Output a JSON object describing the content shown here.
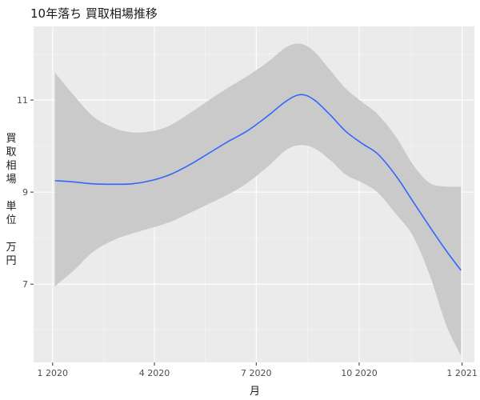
{
  "chart_data": {
    "type": "line",
    "title": "10年落ち 買取相場推移",
    "xlabel": "月",
    "ylabel": "買取相場　単位　万円",
    "x_ticks": [
      "1 2020",
      "4 2020",
      "7 2020",
      "10 2020",
      "1 2021"
    ],
    "y_ticks": [
      "7",
      "9",
      "11"
    ],
    "xlim": [
      "2019-12-15",
      "2021-01-12"
    ],
    "ylim": [
      5.3,
      12.6
    ],
    "grid": true,
    "series": [
      {
        "type": "smooth-line-with-confidence-band",
        "color": "#3366ff",
        "band_color": "#c8c8c8",
        "points": [
          {
            "x": "2020-01-03",
            "y": 9.25,
            "lo": 6.95,
            "hi": 11.6
          },
          {
            "x": "2020-01-20",
            "y": 9.22,
            "lo": 7.3,
            "hi": 11.1
          },
          {
            "x": "2020-02-06",
            "y": 9.18,
            "lo": 7.7,
            "hi": 10.65
          },
          {
            "x": "2020-02-24",
            "y": 9.17,
            "lo": 7.95,
            "hi": 10.4
          },
          {
            "x": "2020-03-12",
            "y": 9.18,
            "lo": 8.1,
            "hi": 10.3
          },
          {
            "x": "2020-03-29",
            "y": 9.25,
            "lo": 8.22,
            "hi": 10.32
          },
          {
            "x": "2020-04-15",
            "y": 9.38,
            "lo": 8.35,
            "hi": 10.45
          },
          {
            "x": "2020-05-03",
            "y": 9.6,
            "lo": 8.55,
            "hi": 10.72
          },
          {
            "x": "2020-05-20",
            "y": 9.85,
            "lo": 8.75,
            "hi": 11.0
          },
          {
            "x": "2020-06-06",
            "y": 10.1,
            "lo": 8.95,
            "hi": 11.27
          },
          {
            "x": "2020-06-23",
            "y": 10.33,
            "lo": 9.2,
            "hi": 11.52
          },
          {
            "x": "2020-07-11",
            "y": 10.65,
            "lo": 9.55,
            "hi": 11.82
          },
          {
            "x": "2020-07-28",
            "y": 10.98,
            "lo": 9.92,
            "hi": 12.15
          },
          {
            "x": "2020-08-10",
            "y": 11.12,
            "lo": 10.02,
            "hi": 12.22
          },
          {
            "x": "2020-08-22",
            "y": 11.0,
            "lo": 9.95,
            "hi": 12.05
          },
          {
            "x": "2020-09-05",
            "y": 10.68,
            "lo": 9.7,
            "hi": 11.65
          },
          {
            "x": "2020-09-19",
            "y": 10.32,
            "lo": 9.38,
            "hi": 11.25
          },
          {
            "x": "2020-10-04",
            "y": 10.05,
            "lo": 9.2,
            "hi": 10.95
          },
          {
            "x": "2020-10-18",
            "y": 9.82,
            "lo": 8.98,
            "hi": 10.68
          },
          {
            "x": "2020-11-03",
            "y": 9.35,
            "lo": 8.52,
            "hi": 10.2
          },
          {
            "x": "2020-11-18",
            "y": 8.8,
            "lo": 8.05,
            "hi": 9.6
          },
          {
            "x": "2020-12-03",
            "y": 8.25,
            "lo": 7.2,
            "hi": 9.2
          },
          {
            "x": "2020-12-18",
            "y": 7.72,
            "lo": 6.1,
            "hi": 9.12
          },
          {
            "x": "2020-12-31",
            "y": 7.3,
            "lo": 5.45,
            "hi": 9.12
          }
        ]
      }
    ]
  }
}
